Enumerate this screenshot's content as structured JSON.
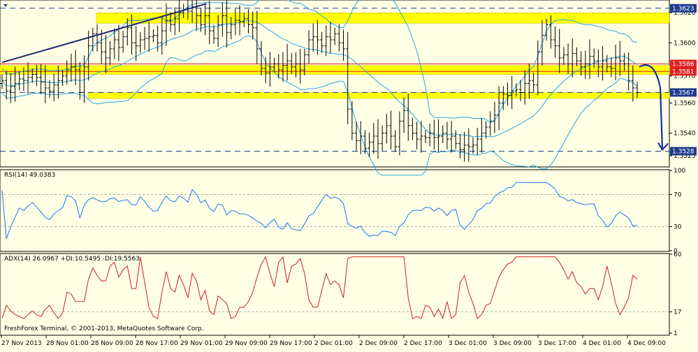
{
  "chart_data": [
    {
      "type": "ohlc",
      "panel": "price",
      "y_range": [
        1.3518,
        1.3628
      ],
      "price_ticks": [
        "1.3620",
        "1.3600",
        "1.3578",
        "1.3560",
        "1.3540",
        "1.3525"
      ],
      "price_tick_values": [
        1.362,
        1.36,
        1.3578,
        1.356,
        1.354,
        1.3525
      ],
      "highlighted_levels": [
        {
          "value": 1.3623,
          "label": "1.3623",
          "color": "#1e3c8c",
          "style": "dashed"
        },
        {
          "value": 1.3586,
          "label": "1.3586",
          "color": "#e0201e",
          "style": "solid"
        },
        {
          "value": 1.3581,
          "label": "1.3581",
          "color": "#e0201e",
          "style": "solid"
        },
        {
          "value": 1.3567,
          "label": "1.3567",
          "color": "#1e3c8c",
          "style": "dashed"
        },
        {
          "value": 1.3528,
          "label": "1.3528",
          "color": "#1e3c8c",
          "style": "dashed"
        }
      ],
      "zones": [
        {
          "from": 1.3613,
          "to": 1.362
        },
        {
          "from": 1.3579,
          "to": 1.3585
        },
        {
          "from": 1.3563,
          "to": 1.3567
        }
      ],
      "closes": [
        1.3575,
        1.3568,
        1.3571,
        1.3573,
        1.3576,
        1.3575,
        1.3577,
        1.3579,
        1.3577,
        1.3574,
        1.357,
        1.3568,
        1.3572,
        1.3575,
        1.3578,
        1.3582,
        1.3584,
        1.3582,
        1.3567,
        1.3584,
        1.3598,
        1.3606,
        1.36,
        1.3594,
        1.359,
        1.3596,
        1.3602,
        1.3597,
        1.3604,
        1.361,
        1.36,
        1.3598,
        1.3602,
        1.3603,
        1.3604,
        1.3605,
        1.36,
        1.3608,
        1.3615,
        1.3612,
        1.3616,
        1.362,
        1.3622,
        1.3621,
        1.3624,
        1.3618,
        1.3612,
        1.3618,
        1.3608,
        1.3603,
        1.3612,
        1.3618,
        1.3607,
        1.3612,
        1.3615,
        1.3614,
        1.3616,
        1.3612,
        1.361,
        1.3596,
        1.3583,
        1.358,
        1.3584,
        1.3586,
        1.3582,
        1.3585,
        1.3588,
        1.3584,
        1.3586,
        1.3582,
        1.3592,
        1.3602,
        1.3604,
        1.3602,
        1.3598,
        1.3604,
        1.3602,
        1.3606,
        1.36,
        1.3596,
        1.3556,
        1.354,
        1.3535,
        1.3538,
        1.353,
        1.3534,
        1.3538,
        1.3533,
        1.354,
        1.3545,
        1.3538,
        1.3531,
        1.3548,
        1.3555,
        1.3545,
        1.354,
        1.3536,
        1.3538,
        1.3537,
        1.354,
        1.3537,
        1.3538,
        1.354,
        1.3536,
        1.3538,
        1.3533,
        1.3529,
        1.3532,
        1.3531,
        1.3532,
        1.3536,
        1.354,
        1.3544,
        1.3548,
        1.3552,
        1.356,
        1.3566,
        1.3565,
        1.3568,
        1.3569,
        1.3567,
        1.3573,
        1.3575,
        1.3572,
        1.3594,
        1.3605,
        1.3612,
        1.3602,
        1.3598,
        1.359,
        1.3592,
        1.3586,
        1.3593,
        1.3588,
        1.3584,
        1.3586,
        1.3591,
        1.3588,
        1.3584,
        1.3588,
        1.3584,
        1.3583,
        1.359,
        1.3588,
        1.3586,
        1.3575,
        1.357,
        1.3567
      ],
      "x_ticks": [
        "27 Nov 2013",
        "28 Nov 01:00",
        "28 Nov 09:00",
        "28 Nov 17:00",
        "29 Nov 01:00",
        "29 Nov 09:00",
        "29 Nov 17:00",
        "2 Dec 01:00",
        "2 Dec 09:00",
        "2 Dec 17:00",
        "3 Dec 01:00",
        "3 Dec 09:00",
        "3 Dec 17:00",
        "4 Dec 01:00",
        "4 Dec 09:00"
      ],
      "indicators": [
        "bollinger_bands",
        "moving_average"
      ],
      "trendline": {
        "from": [
          0,
          1.3587
        ],
        "to": [
          46,
          1.3626
        ]
      },
      "forecast_arrow": true
    },
    {
      "type": "line",
      "panel": "oscillator",
      "label": "RSI(14) 49.0383",
      "y_range": [
        0,
        100
      ],
      "y_ticks": [
        "100",
        "70",
        "30",
        "0"
      ],
      "y_tick_values": [
        100,
        70,
        30,
        0
      ],
      "color": "#1e78f0",
      "levels": [
        70,
        30
      ]
    },
    {
      "type": "line",
      "panel": "oscillator",
      "label": "ADX(14) 26.0967 +DI:10.5495 -DI:19.5563",
      "y_range": [
        0,
        60
      ],
      "y_ticks": [
        "60",
        "17",
        "1"
      ],
      "y_tick_values": [
        60,
        17,
        1
      ],
      "color": "#cc1f1f",
      "levels": [
        17
      ]
    }
  ],
  "footer": {
    "copyright": "FreshForex Terminal, © 2001-2013, MetaQuotes Software Corp."
  },
  "colors": {
    "background": "#ffffe6",
    "zone": "#ffff00",
    "candles": "#000000",
    "bands": "#2aa6e0",
    "axis_label_box": "#1e3c8c",
    "red_label_box": "#e0201e"
  }
}
